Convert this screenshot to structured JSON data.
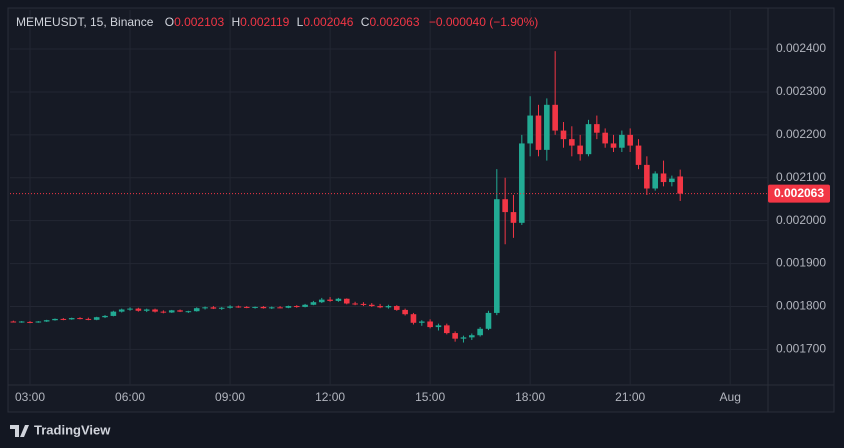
{
  "chart_data": {
    "type": "candlestick",
    "symbol": "MEMEUSDT, 15, Binance",
    "ohlc_letters": [
      "O",
      "H",
      "L",
      "C"
    ],
    "change": "−0.000040 (−1.90%)",
    "up_color": "#22ab94",
    "down_color": "#f23645",
    "grid": true,
    "x": [
      "02:30",
      "02:45",
      "03:00",
      "03:15",
      "03:30",
      "03:45",
      "04:00",
      "04:15",
      "04:30",
      "04:45",
      "05:00",
      "05:15",
      "05:30",
      "05:45",
      "06:00",
      "06:15",
      "06:30",
      "06:45",
      "07:00",
      "07:15",
      "07:30",
      "07:45",
      "08:00",
      "08:15",
      "08:30",
      "08:45",
      "09:00",
      "09:15",
      "09:30",
      "09:45",
      "10:00",
      "10:15",
      "10:30",
      "10:45",
      "11:00",
      "11:15",
      "11:30",
      "11:45",
      "12:00",
      "12:15",
      "12:30",
      "12:45",
      "13:00",
      "13:15",
      "13:30",
      "13:45",
      "14:00",
      "14:15",
      "14:30",
      "14:45",
      "15:00",
      "15:15",
      "15:30",
      "15:45",
      "16:00",
      "16:15",
      "16:30",
      "16:45",
      "17:00",
      "17:15",
      "17:30",
      "17:45",
      "18:00",
      "18:15",
      "18:30",
      "18:45",
      "19:00",
      "19:15",
      "19:30",
      "19:45",
      "20:00",
      "20:15",
      "20:30",
      "20:45",
      "21:00",
      "21:15",
      "21:30",
      "21:45",
      "22:00",
      "22:15",
      "22:30"
    ],
    "open": [
      0.001765,
      0.001764,
      0.001764,
      0.001763,
      0.001765,
      0.001768,
      0.001771,
      0.00177,
      0.001773,
      0.001771,
      0.001769,
      0.001775,
      0.001778,
      0.001788,
      0.001793,
      0.001795,
      0.00179,
      0.001793,
      0.001788,
      0.001786,
      0.001791,
      0.001788,
      0.001789,
      0.001796,
      0.001798,
      0.001795,
      0.001797,
      0.0018,
      0.001799,
      0.001798,
      0.001799,
      0.001796,
      0.001798,
      0.001797,
      0.001801,
      0.001799,
      0.001804,
      0.00181,
      0.001816,
      0.001813,
      0.001818,
      0.001807,
      0.001806,
      0.001804,
      0.001801,
      0.001798,
      0.001801,
      0.001792,
      0.001782,
      0.001762,
      0.001765,
      0.001752,
      0.001756,
      0.001738,
      0.001725,
      0.001728,
      0.001733,
      0.001748,
      0.001785,
      0.00205,
      0.00202,
      0.001995,
      0.00218,
      0.002245,
      0.002165,
      0.00227,
      0.00221,
      0.00219,
      0.002175,
      0.002155,
      0.002225,
      0.002205,
      0.00218,
      0.00217,
      0.0022,
      0.002175,
      0.00213,
      0.002075,
      0.00211,
      0.00209,
      0.002103
    ],
    "high": [
      0.001767,
      0.001766,
      0.001766,
      0.001766,
      0.001769,
      0.001772,
      0.001773,
      0.001774,
      0.001775,
      0.001774,
      0.001776,
      0.00178,
      0.00179,
      0.001795,
      0.001798,
      0.001797,
      0.001795,
      0.001795,
      0.001791,
      0.001792,
      0.001793,
      0.00179,
      0.001798,
      0.0018,
      0.001801,
      0.001799,
      0.001803,
      0.001802,
      0.001801,
      0.0018,
      0.001801,
      0.0018,
      0.001801,
      0.001802,
      0.001803,
      0.001806,
      0.001813,
      0.00182,
      0.001822,
      0.00182,
      0.001819,
      0.001811,
      0.00181,
      0.001808,
      0.001806,
      0.001804,
      0.001803,
      0.001795,
      0.001785,
      0.001768,
      0.00177,
      0.00176,
      0.00176,
      0.001742,
      0.001732,
      0.001737,
      0.001752,
      0.00179,
      0.00212,
      0.0021,
      0.00206,
      0.0022,
      0.00229,
      0.00227,
      0.002285,
      0.002395,
      0.00223,
      0.00222,
      0.0022,
      0.002235,
      0.002245,
      0.002215,
      0.0022,
      0.00221,
      0.002215,
      0.00219,
      0.00215,
      0.002115,
      0.00214,
      0.002105,
      0.002119
    ],
    "low": [
      0.001763,
      0.001762,
      0.001761,
      0.001762,
      0.001764,
      0.001767,
      0.001768,
      0.001769,
      0.00177,
      0.001768,
      0.001768,
      0.001773,
      0.001777,
      0.001786,
      0.00179,
      0.001788,
      0.001787,
      0.001786,
      0.001784,
      0.001785,
      0.001787,
      0.001785,
      0.001788,
      0.001793,
      0.001794,
      0.001792,
      0.001795,
      0.001797,
      0.001796,
      0.001795,
      0.001795,
      0.001794,
      0.001796,
      0.001796,
      0.001797,
      0.001798,
      0.001803,
      0.001808,
      0.001811,
      0.001811,
      0.001805,
      0.001803,
      0.001801,
      0.001799,
      0.001796,
      0.001795,
      0.00179,
      0.001779,
      0.001758,
      0.001755,
      0.001749,
      0.001744,
      0.001735,
      0.001718,
      0.001716,
      0.001722,
      0.00173,
      0.001745,
      0.00178,
      0.001945,
      0.00196,
      0.00199,
      0.00215,
      0.00215,
      0.00214,
      0.0022,
      0.00217,
      0.00215,
      0.00214,
      0.00215,
      0.00219,
      0.00217,
      0.00216,
      0.00216,
      0.00216,
      0.00212,
      0.00206,
      0.00207,
      0.00208,
      0.00208,
      0.002046
    ],
    "close": [
      0.001764,
      0.001765,
      0.001763,
      0.001765,
      0.001768,
      0.001771,
      0.00177,
      0.001773,
      0.001771,
      0.001769,
      0.001775,
      0.001778,
      0.001788,
      0.001793,
      0.001795,
      0.00179,
      0.001793,
      0.001788,
      0.001786,
      0.001791,
      0.001788,
      0.001789,
      0.001796,
      0.001798,
      0.001795,
      0.001797,
      0.0018,
      0.001799,
      0.001798,
      0.001799,
      0.001796,
      0.001798,
      0.001797,
      0.001801,
      0.001799,
      0.001804,
      0.00181,
      0.001816,
      0.001813,
      0.001818,
      0.001807,
      0.001806,
      0.001804,
      0.001801,
      0.001798,
      0.001801,
      0.001792,
      0.001782,
      0.001762,
      0.001765,
      0.001752,
      0.001756,
      0.001738,
      0.001725,
      0.001728,
      0.001733,
      0.001748,
      0.001785,
      0.00205,
      0.00202,
      0.001995,
      0.00218,
      0.002245,
      0.002165,
      0.00227,
      0.00221,
      0.00219,
      0.002175,
      0.002155,
      0.002225,
      0.002205,
      0.00218,
      0.00217,
      0.0022,
      0.002175,
      0.00213,
      0.002075,
      0.00211,
      0.00209,
      0.002098,
      0.002063
    ],
    "xlim": [
      "02:24",
      "25:08"
    ],
    "xticks": [
      "03:00",
      "06:00",
      "09:00",
      "12:00",
      "15:00",
      "18:00",
      "21:00",
      {
        "value": "24:00",
        "label": "Aug"
      }
    ],
    "ylim": [
      0.001617,
      0.002491
    ],
    "yticks": [
      {
        "value": 0.0017,
        "label": "0.001700"
      },
      {
        "value": 0.0018,
        "label": "0.001800"
      },
      {
        "value": 0.0019,
        "label": "0.001900"
      },
      {
        "value": 0.002,
        "label": "0.002000"
      },
      {
        "value": 0.0021,
        "label": "0.002100"
      },
      {
        "value": 0.0022,
        "label": "0.002200"
      },
      {
        "value": 0.0023,
        "label": "0.002300"
      },
      {
        "value": 0.0024,
        "label": "0.002400"
      }
    ]
  },
  "footer": {
    "brand": "TradingView"
  }
}
